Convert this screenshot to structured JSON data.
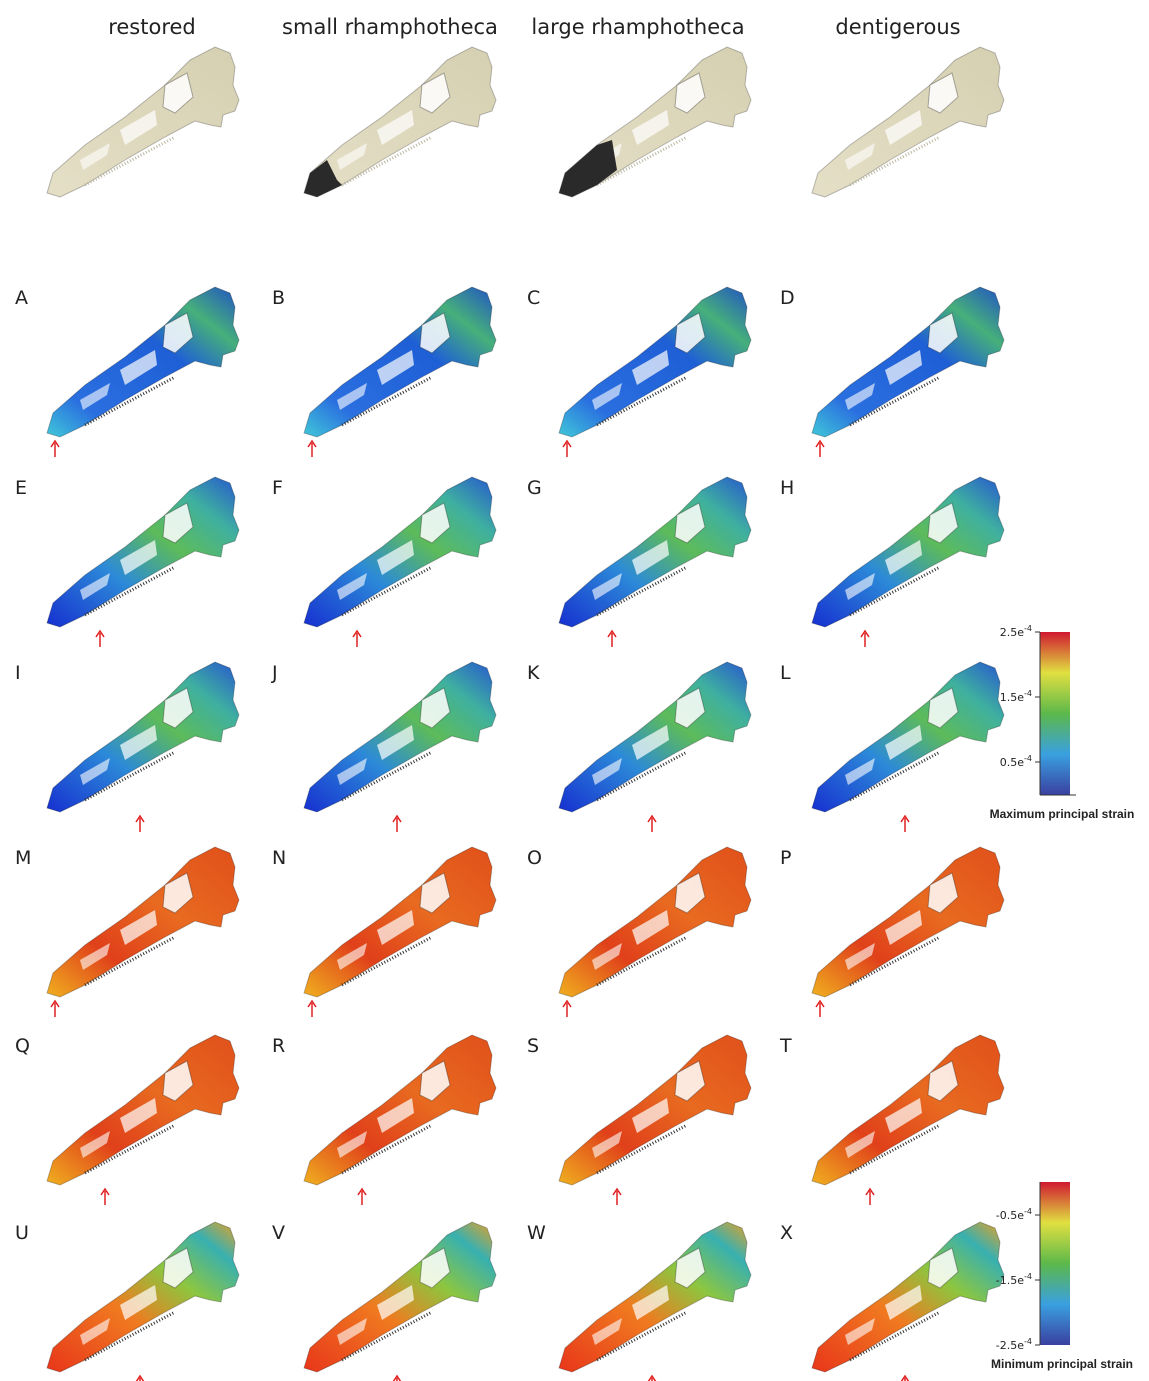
{
  "column_headers": [
    "restored",
    "small rhamphotheca",
    "large rhamphotheca",
    "dentigerous"
  ],
  "rows": [
    [
      "A",
      "B",
      "C",
      "D"
    ],
    [
      "E",
      "F",
      "G",
      "H"
    ],
    [
      "I",
      "J",
      "K",
      "L"
    ],
    [
      "M",
      "N",
      "O",
      "P"
    ],
    [
      "Q",
      "R",
      "S",
      "T"
    ],
    [
      "U",
      "V",
      "W",
      "X"
    ]
  ],
  "colorbars": [
    {
      "ticks": [
        {
          "mantissa": "2.5e",
          "exponent": "-4"
        },
        {
          "mantissa": "1.5e",
          "exponent": "-4"
        },
        {
          "mantissa": "0.5e",
          "exponent": "-4"
        }
      ],
      "title": "Maximum principal strain"
    },
    {
      "ticks": [
        {
          "mantissa": "-0.5e",
          "exponent": "-4"
        },
        {
          "mantissa": "-1.5e",
          "exponent": "-4"
        },
        {
          "mantissa": "-2.5e",
          "exponent": "-4"
        }
      ],
      "title": "Minimum principal strain"
    }
  ]
}
